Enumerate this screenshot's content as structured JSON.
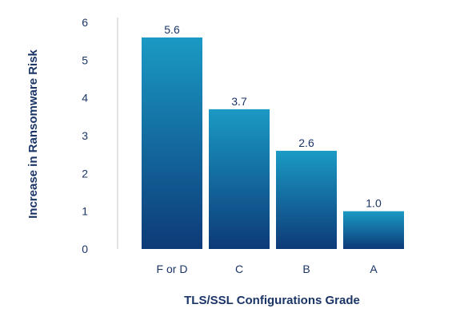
{
  "colors": {
    "bar_top": "#1a9ac4",
    "bar_bottom": "#0d3a78",
    "text": "#1a3566",
    "axis": "#c7c7c7"
  },
  "chart_data": {
    "type": "bar",
    "categories": [
      "F or D",
      "C",
      "B",
      "A"
    ],
    "values": [
      5.6,
      3.7,
      2.6,
      1.0
    ],
    "value_labels": [
      "5.6",
      "3.7",
      "2.6",
      "1.0"
    ],
    "xlabel": "TLS/SSL Configurations Grade",
    "ylabel": "Increase in Ransomware Risk",
    "ylim": [
      0,
      6
    ],
    "yticks": [
      0,
      1,
      2,
      3,
      4,
      5,
      6
    ],
    "grid": false,
    "legend": "none"
  }
}
